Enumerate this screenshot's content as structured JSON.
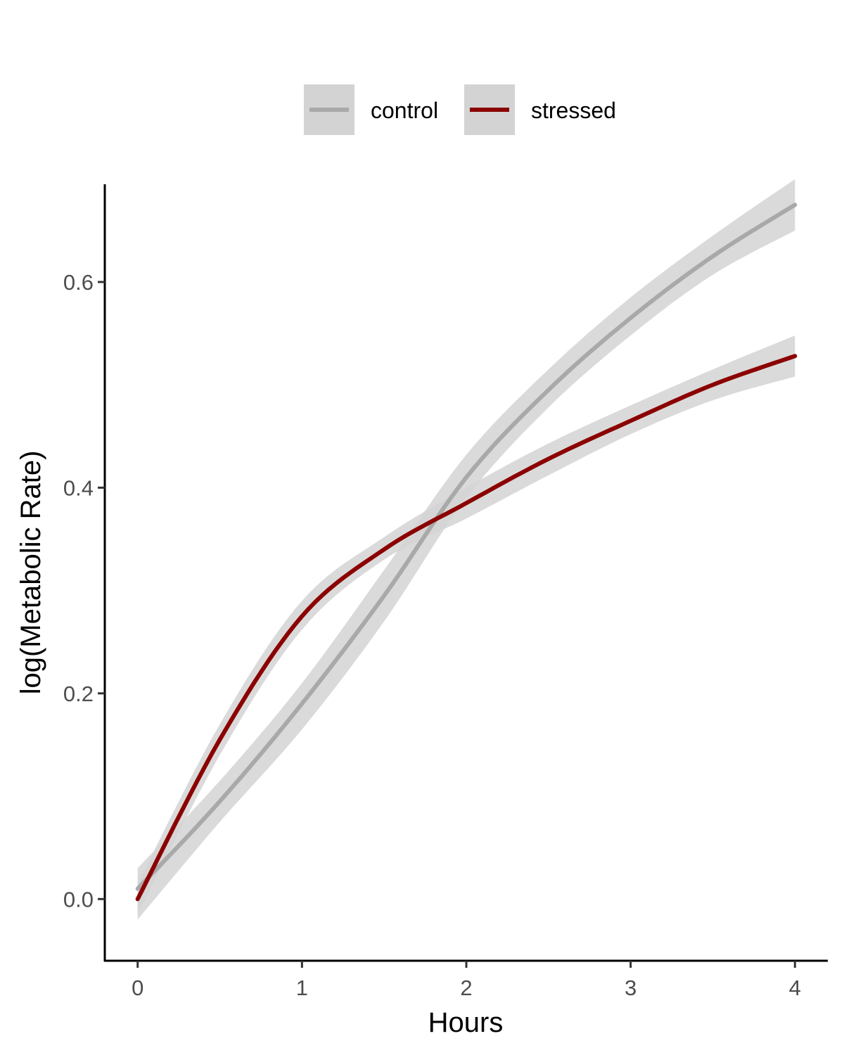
{
  "chart_data": {
    "type": "line",
    "title": "",
    "xlabel": "Hours",
    "ylabel": "log(Metabolic Rate)",
    "xlim": [
      -0.2,
      4.2
    ],
    "ylim": [
      -0.06,
      0.695
    ],
    "x_ticks": [
      0,
      1,
      2,
      3,
      4
    ],
    "x_tick_labels": [
      "0",
      "1",
      "2",
      "3",
      "4"
    ],
    "y_ticks": [
      0.0,
      0.2,
      0.4,
      0.6
    ],
    "y_tick_labels": [
      "0.0",
      "0.2",
      "0.4",
      "0.6"
    ],
    "grid": false,
    "legend": {
      "position": "top"
    },
    "ribbon_color": "#d3d3d3",
    "series": [
      {
        "name": "control",
        "color": "#a9a9a9",
        "x": [
          0,
          0.5,
          1,
          1.5,
          2,
          2.5,
          3,
          3.5,
          4
        ],
        "y": [
          0.01,
          0.095,
          0.19,
          0.295,
          0.41,
          0.495,
          0.565,
          0.625,
          0.675
        ],
        "lower": [
          -0.02,
          0.075,
          0.165,
          0.27,
          0.39,
          0.478,
          0.548,
          0.607,
          0.65
        ],
        "upper": [
          0.03,
          0.115,
          0.21,
          0.32,
          0.432,
          0.515,
          0.585,
          0.645,
          0.7
        ]
      },
      {
        "name": "stressed",
        "color": "#8b0000",
        "x": [
          0,
          0.5,
          1,
          1.5,
          2,
          2.5,
          3,
          3.5,
          4
        ],
        "y": [
          0.0,
          0.155,
          0.275,
          0.34,
          0.385,
          0.428,
          0.465,
          0.5,
          0.528
        ],
        "lower": [
          -0.015,
          0.14,
          0.262,
          0.33,
          0.37,
          0.412,
          0.452,
          0.485,
          0.508
        ],
        "upper": [
          0.015,
          0.17,
          0.29,
          0.352,
          0.4,
          0.443,
          0.48,
          0.515,
          0.548
        ]
      }
    ]
  }
}
